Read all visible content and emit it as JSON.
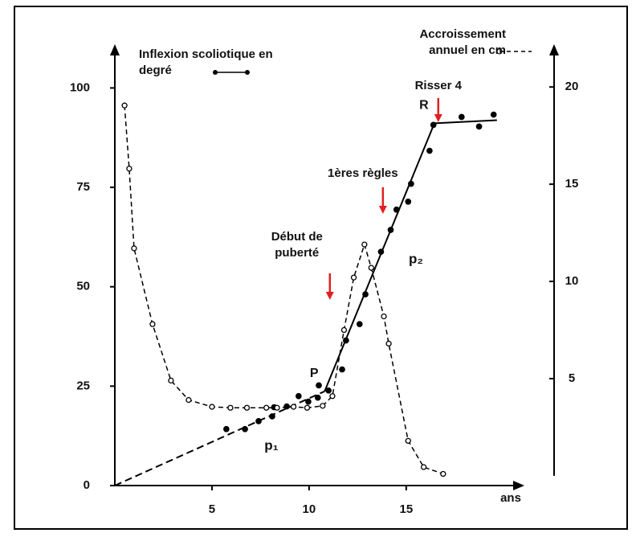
{
  "chart_data": {
    "type": "line",
    "x_label": "ans",
    "xlim": [
      0,
      21
    ],
    "xticks": [
      5,
      10,
      15
    ],
    "ylim": [
      0,
      111
    ],
    "yticks": [
      0,
      25,
      50,
      75,
      100
    ],
    "y2lim": [
      -0.5,
      22.2
    ],
    "y2ticks": [
      5,
      10,
      15,
      20
    ],
    "series": [
      {
        "name": "Inflexion scoliotique en degré",
        "color": "#000000",
        "marker": "filled",
        "x": [
          5.74,
          6.7,
          7.4,
          8.1,
          8.2,
          8.85,
          9.46,
          9.96,
          10.45,
          10.5,
          11.0,
          11.7,
          11.9,
          12.6,
          12.9,
          13.7,
          14.2,
          14.5,
          15.1,
          15.25,
          16.2,
          16.4,
          17.85,
          18.75,
          19.5
        ],
        "values": [
          14.2,
          14.2,
          16.2,
          17.4,
          19.7,
          19.9,
          22.5,
          21.1,
          22.1,
          25.2,
          23.9,
          29.2,
          36.5,
          40.6,
          48.1,
          58.8,
          64.3,
          69.4,
          71.4,
          75.9,
          84.2,
          90.7,
          92.7,
          90.3,
          93.3
        ]
      },
      {
        "name": "Accroissement annuel en cm",
        "color": "#000000",
        "marker": "open",
        "dashed": true,
        "axis": "y2",
        "x": [
          0.5,
          0.74,
          0.99,
          1.94,
          2.89,
          3.8,
          5.0,
          5.95,
          6.8,
          7.8,
          8.35,
          9.2,
          9.9,
          10.7,
          11.2,
          11.8,
          12.3,
          12.85,
          13.2,
          13.85,
          14.1,
          15.1,
          15.9,
          16.9
        ],
        "values": [
          19.05,
          15.8,
          11.7,
          7.8,
          4.9,
          3.9,
          3.55,
          3.5,
          3.5,
          3.5,
          3.5,
          3.55,
          3.5,
          3.6,
          4.1,
          7.5,
          10.2,
          11.9,
          10.7,
          8.2,
          6.8,
          1.8,
          0.45,
          0.1
        ]
      }
    ],
    "trend": {
      "x": [
        0,
        10.8,
        16.45,
        19.67
      ],
      "values": [
        0,
        23.7,
        91.1,
        91.9
      ],
      "point_labels": [
        null,
        "P",
        "R",
        null
      ]
    },
    "events": [
      {
        "text": "Risser 4",
        "x": 16.65
      },
      {
        "text": "1ères règles",
        "x": 13.8
      },
      {
        "text": "Début de puberté",
        "x": 11.07
      }
    ],
    "annotations": [
      "p₁",
      "p₂"
    ]
  }
}
